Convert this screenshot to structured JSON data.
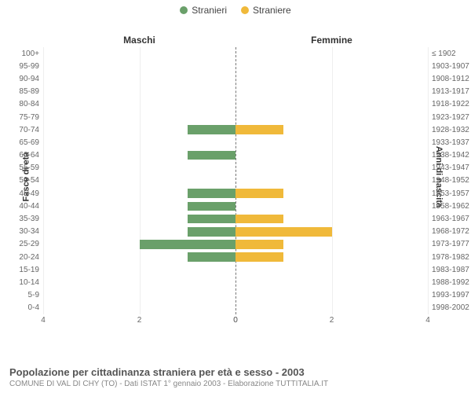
{
  "legend": {
    "male": {
      "label": "Stranieri",
      "color": "#6aa06a"
    },
    "female": {
      "label": "Straniere",
      "color": "#f0b93a"
    }
  },
  "headers": {
    "left": "Maschi",
    "right": "Femmine"
  },
  "axis_titles": {
    "left_y": "Fasce di età",
    "right_y": "Anni di nascita"
  },
  "chart": {
    "type": "population-pyramid",
    "x_max": 4,
    "x_ticks_left": [
      4,
      2,
      0
    ],
    "x_ticks_right": [
      0,
      2,
      4
    ],
    "grid_color": "#eeeeee",
    "centerline_color": "#777777",
    "bar_colors": {
      "male": "#6aa06a",
      "female": "#f0b93a"
    },
    "background": "#ffffff",
    "rows": [
      {
        "age": "100+",
        "birth": "≤ 1902",
        "m": 0,
        "f": 0
      },
      {
        "age": "95-99",
        "birth": "1903-1907",
        "m": 0,
        "f": 0
      },
      {
        "age": "90-94",
        "birth": "1908-1912",
        "m": 0,
        "f": 0
      },
      {
        "age": "85-89",
        "birth": "1913-1917",
        "m": 0,
        "f": 0
      },
      {
        "age": "80-84",
        "birth": "1918-1922",
        "m": 0,
        "f": 0
      },
      {
        "age": "75-79",
        "birth": "1923-1927",
        "m": 0,
        "f": 0
      },
      {
        "age": "70-74",
        "birth": "1928-1932",
        "m": 1,
        "f": 1
      },
      {
        "age": "65-69",
        "birth": "1933-1937",
        "m": 0,
        "f": 0
      },
      {
        "age": "60-64",
        "birth": "1938-1942",
        "m": 1,
        "f": 0
      },
      {
        "age": "55-59",
        "birth": "1943-1947",
        "m": 0,
        "f": 0
      },
      {
        "age": "50-54",
        "birth": "1948-1952",
        "m": 0,
        "f": 0
      },
      {
        "age": "45-49",
        "birth": "1953-1957",
        "m": 1,
        "f": 1
      },
      {
        "age": "40-44",
        "birth": "1958-1962",
        "m": 1,
        "f": 0
      },
      {
        "age": "35-39",
        "birth": "1963-1967",
        "m": 1,
        "f": 1
      },
      {
        "age": "30-34",
        "birth": "1968-1972",
        "m": 1,
        "f": 2
      },
      {
        "age": "25-29",
        "birth": "1973-1977",
        "m": 2,
        "f": 1
      },
      {
        "age": "20-24",
        "birth": "1978-1982",
        "m": 1,
        "f": 1
      },
      {
        "age": "15-19",
        "birth": "1983-1987",
        "m": 0,
        "f": 0
      },
      {
        "age": "10-14",
        "birth": "1988-1992",
        "m": 0,
        "f": 0
      },
      {
        "age": "5-9",
        "birth": "1993-1997",
        "m": 0,
        "f": 0
      },
      {
        "age": "0-4",
        "birth": "1998-2002",
        "m": 0,
        "f": 0
      }
    ]
  },
  "footer": {
    "title": "Popolazione per cittadinanza straniera per età e sesso - 2003",
    "subtitle": "COMUNE DI VAL DI CHY (TO) - Dati ISTAT 1° gennaio 2003 - Elaborazione TUTTITALIA.IT"
  }
}
